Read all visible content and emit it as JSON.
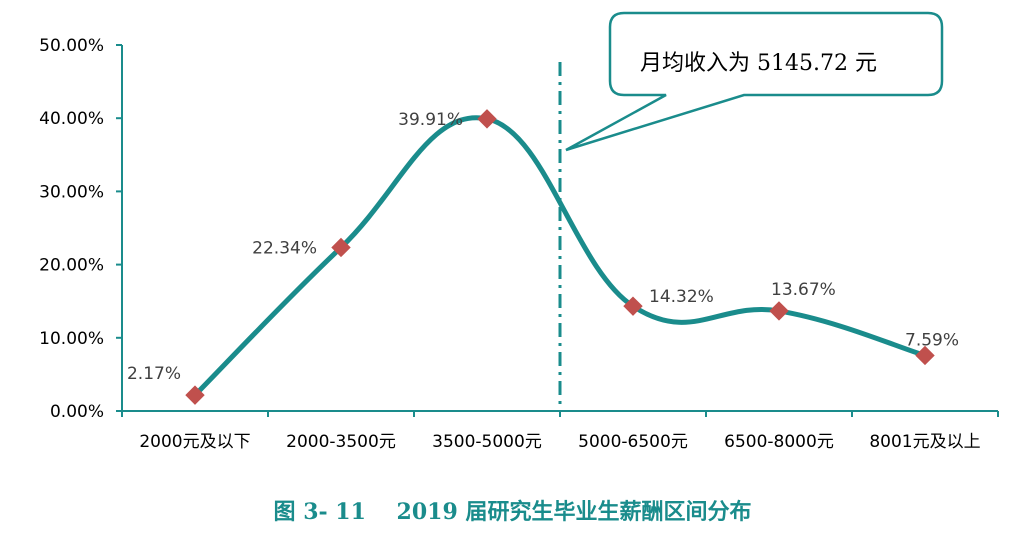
{
  "chart_data": {
    "type": "line",
    "categories": [
      "2000元及以下",
      "2000-3500元",
      "3500-5000元",
      "5000-6500元",
      "6500-8000元",
      "8001元及以上"
    ],
    "values": [
      2.17,
      22.34,
      39.91,
      14.32,
      13.67,
      7.59
    ],
    "data_labels": [
      "2.17%",
      "22.34%",
      "39.91%",
      "14.32%",
      "13.67%",
      "7.59%"
    ],
    "y_ticks": [
      "0.00%",
      "10.00%",
      "20.00%",
      "30.00%",
      "40.00%",
      "50.00%"
    ],
    "ylim": [
      0,
      50
    ],
    "grid": false,
    "smooth": true,
    "marker": "diamond",
    "marker_value": 5145.72,
    "callout": "月均收入为 5145.72 元",
    "caption": "图 3- 11    2019 届研究生毕业生薪酬区间分布",
    "colors": {
      "line": "#1a8c8c",
      "marker": "#c0504d",
      "axis": "#1a8c8c",
      "callout_border": "#1a8c8c"
    }
  }
}
